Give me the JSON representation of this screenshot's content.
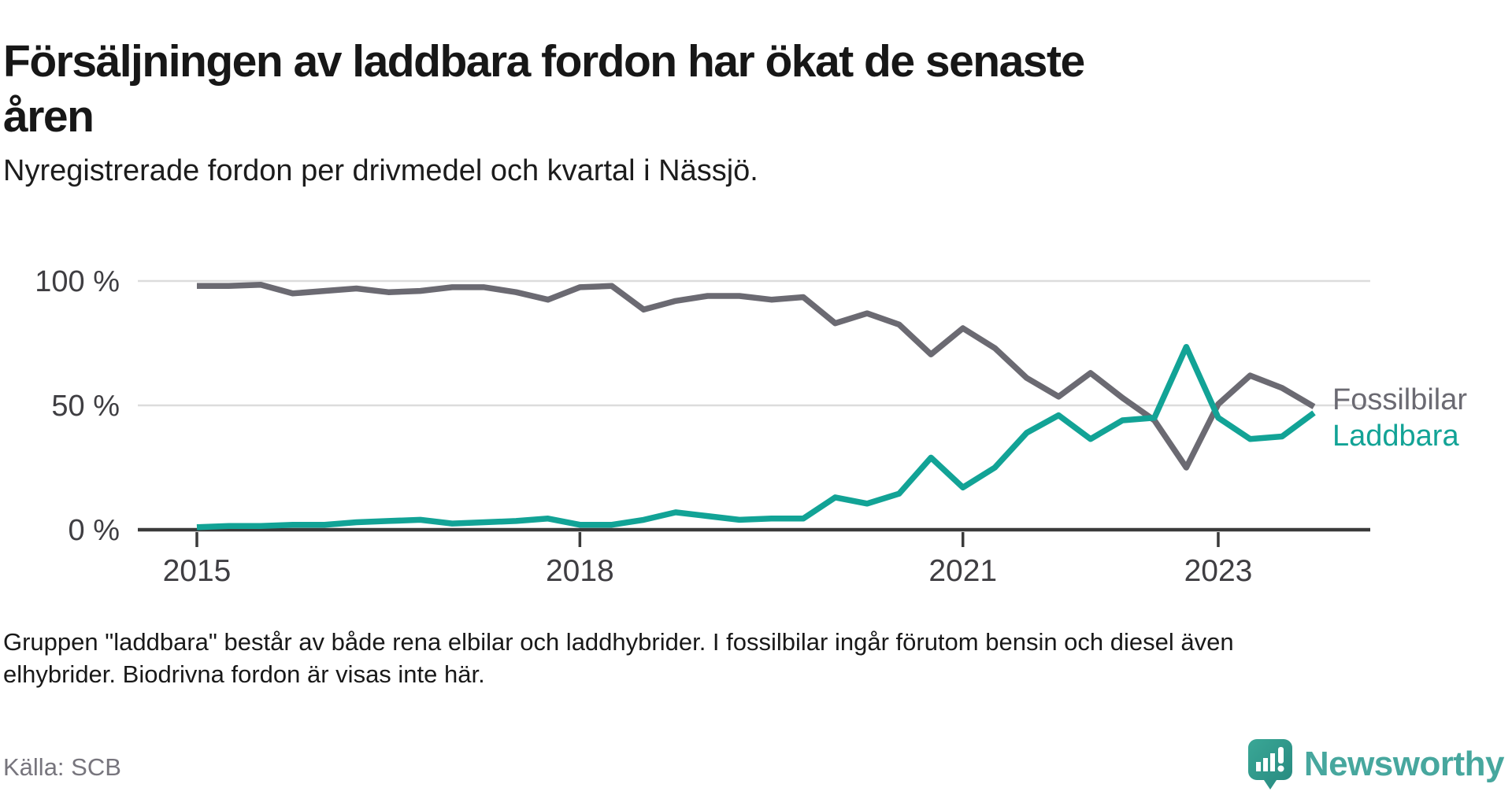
{
  "chart_data": {
    "type": "line",
    "title": "Försäljningen av laddbara fordon har ökat de senaste\nåren",
    "subtitle": "Nyregistrerade fordon per drivmedel och kvartal i Nässjö.",
    "note": "Gruppen \"laddbara\" består av både rena elbilar och laddhybrider. I fossilbilar ingår förutom bensin och diesel även\nelhybrider. Biodrivna fordon är visas inte här.",
    "source": "Källa: SCB",
    "xlabel": "",
    "ylabel": "",
    "ylim": [
      0,
      100
    ],
    "grid": "horizontal",
    "legend_position": "right-of-line-end",
    "x": [
      "2015 Q1",
      "2015 Q2",
      "2015 Q3",
      "2015 Q4",
      "2016 Q1",
      "2016 Q2",
      "2016 Q3",
      "2016 Q4",
      "2017 Q1",
      "2017 Q2",
      "2017 Q3",
      "2017 Q4",
      "2018 Q1",
      "2018 Q2",
      "2018 Q3",
      "2018 Q4",
      "2019 Q1",
      "2019 Q2",
      "2019 Q3",
      "2019 Q4",
      "2020 Q1",
      "2020 Q2",
      "2020 Q3",
      "2020 Q4",
      "2021 Q1",
      "2021 Q2",
      "2021 Q3",
      "2021 Q4",
      "2022 Q1",
      "2022 Q2",
      "2022 Q3",
      "2022 Q4",
      "2023 Q1",
      "2023 Q2",
      "2023 Q3",
      "2023 Q4"
    ],
    "series": [
      {
        "name": "Fossilbilar",
        "color": "#6b6a72",
        "values": [
          98,
          98,
          98.5,
          95,
          96,
          97,
          95.5,
          96,
          97.5,
          97.5,
          95.5,
          92.5,
          97.5,
          98,
          88.5,
          92,
          94,
          94,
          92.5,
          93.5,
          83,
          87,
          82.5,
          70.5,
          81,
          73,
          61,
          53.5,
          63,
          53,
          44,
          25,
          50.5,
          62,
          57,
          49.5
        ]
      },
      {
        "name": "Laddbara",
        "color": "#12a396",
        "values": [
          1,
          1.5,
          1.5,
          2,
          2,
          3,
          3.5,
          4,
          2.5,
          3,
          3.5,
          4.5,
          2,
          2,
          4,
          7,
          5.5,
          4,
          4.5,
          4.5,
          13,
          10.5,
          14.5,
          29,
          17,
          25,
          39,
          46,
          36.5,
          44,
          45,
          73.5,
          45,
          36.5,
          37.5,
          47
        ]
      }
    ],
    "y_ticks": [
      {
        "value": 100,
        "label": "100 %"
      },
      {
        "value": 50,
        "label": "50 %"
      },
      {
        "value": 0,
        "label": "0 %"
      }
    ],
    "x_year_ticks": [
      {
        "label": "2015",
        "index": 0
      },
      {
        "label": "2018",
        "index": 12
      },
      {
        "label": "2021",
        "index": 24
      },
      {
        "label": "2023",
        "index": 32
      }
    ],
    "axis_color": "#3a3a3a",
    "gridline_color": "#dcdcdc",
    "tick_label_color": "#3f3e42"
  },
  "branding": {
    "logo_text": "Newsworthy",
    "logo_color": "#47a79e",
    "logo_icon": "bar-chart-speech-bubble-icon"
  }
}
